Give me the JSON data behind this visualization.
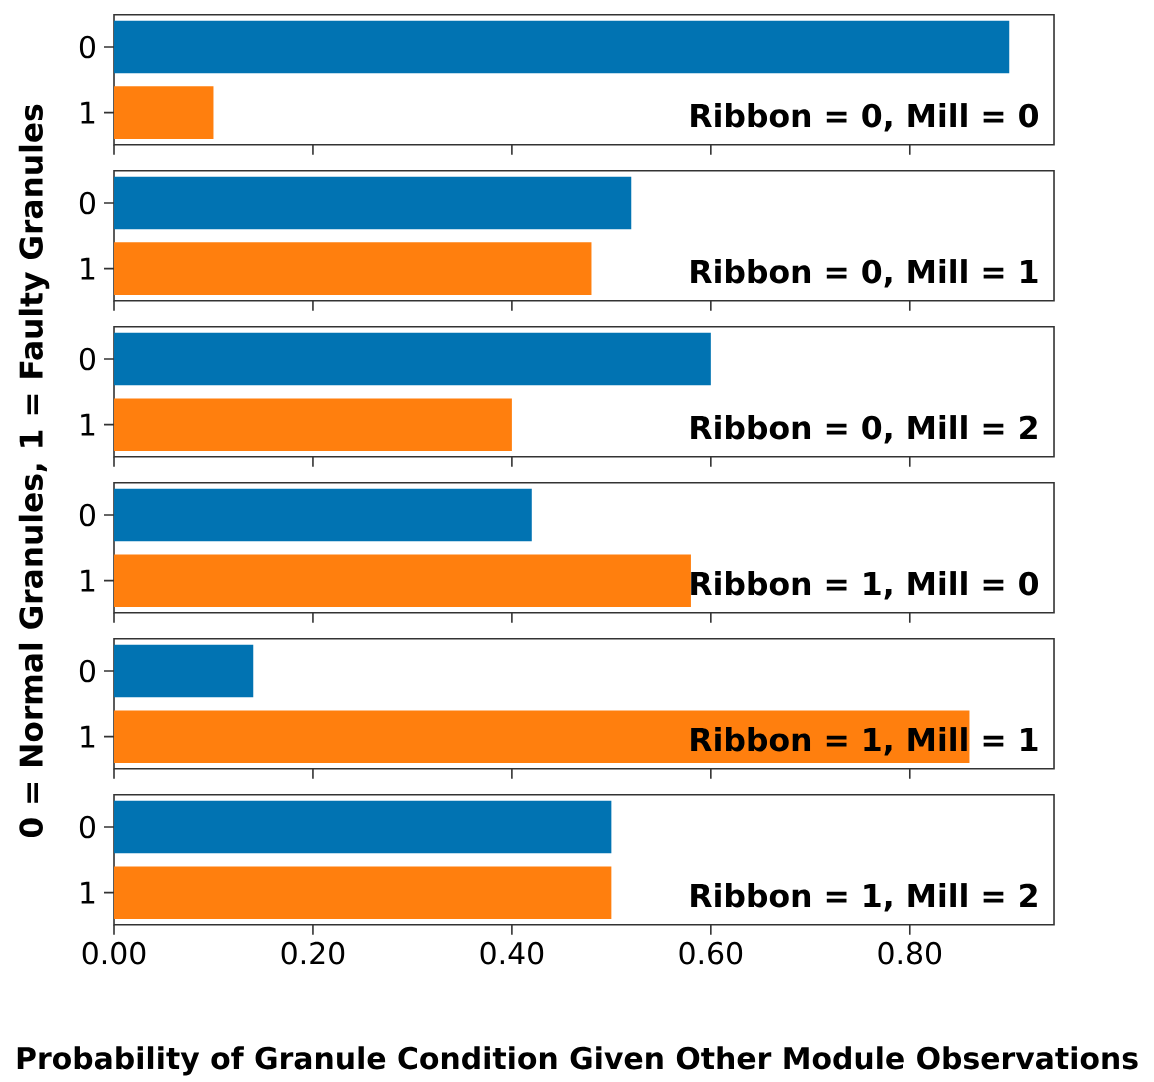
{
  "chart_data": [
    {
      "type": "bar",
      "orientation": "horizontal",
      "ylabel": "0 = Normal Granules, 1 = Faulty Granules",
      "categories": [
        "0",
        "1"
      ],
      "values": [
        0.9,
        0.1
      ],
      "colors": [
        "#0173b2",
        "#ff7f0e"
      ],
      "xlim": [
        0,
        0.945
      ],
      "xticks": [
        0,
        0.2,
        0.4,
        0.6,
        0.8
      ],
      "tick_labels": "y",
      "annotations": [
        "Ribbon = 0, Mill = 0"
      ]
    },
    {
      "type": "bar",
      "orientation": "horizontal",
      "categories": [
        "0",
        "1"
      ],
      "values": [
        0.52,
        0.48
      ],
      "colors": [
        "#0173b2",
        "#ff7f0e"
      ],
      "xlim": [
        0,
        0.945
      ],
      "xticks": [
        0,
        0.2,
        0.4,
        0.6,
        0.8
      ],
      "tick_labels": "y",
      "annotations": [
        "Ribbon = 0, Mill = 1"
      ]
    },
    {
      "type": "bar",
      "orientation": "horizontal",
      "categories": [
        "0",
        "1"
      ],
      "values": [
        0.6,
        0.4
      ],
      "colors": [
        "#0173b2",
        "#ff7f0e"
      ],
      "xlim": [
        0,
        0.945
      ],
      "xticks": [
        0,
        0.2,
        0.4,
        0.6,
        0.8
      ],
      "tick_labels": "y",
      "annotations": [
        "Ribbon = 0, Mill = 2"
      ]
    },
    {
      "type": "bar",
      "orientation": "horizontal",
      "categories": [
        "0",
        "1"
      ],
      "values": [
        0.42,
        0.58
      ],
      "colors": [
        "#0173b2",
        "#ff7f0e"
      ],
      "xlim": [
        0,
        0.945
      ],
      "xticks": [
        0,
        0.2,
        0.4,
        0.6,
        0.8
      ],
      "tick_labels": "y",
      "annotations": [
        "Ribbon = 1, Mill = 0"
      ]
    },
    {
      "type": "bar",
      "orientation": "horizontal",
      "categories": [
        "0",
        "1"
      ],
      "values": [
        0.14,
        0.86
      ],
      "colors": [
        "#0173b2",
        "#ff7f0e"
      ],
      "xlim": [
        0,
        0.945
      ],
      "xticks": [
        0,
        0.2,
        0.4,
        0.6,
        0.8
      ],
      "tick_labels": "y",
      "annotations": [
        "Ribbon = 1, Mill = 1"
      ]
    },
    {
      "type": "bar",
      "orientation": "horizontal",
      "xlabel": "Probability of Granule Condition Given Other Module Observations",
      "categories": [
        "0",
        "1"
      ],
      "values": [
        0.5,
        0.5
      ],
      "colors": [
        "#0173b2",
        "#ff7f0e"
      ],
      "xlim": [
        0,
        0.945
      ],
      "xticks": [
        {
          "value": 0,
          "label": "0.00"
        },
        {
          "value": 0.2,
          "label": "0.20"
        },
        {
          "value": 0.4,
          "label": "0.40"
        },
        {
          "value": 0.6,
          "label": "0.60"
        },
        {
          "value": 0.8,
          "label": "0.80"
        }
      ],
      "annotations": [
        "Ribbon = 1, Mill = 2"
      ]
    }
  ]
}
